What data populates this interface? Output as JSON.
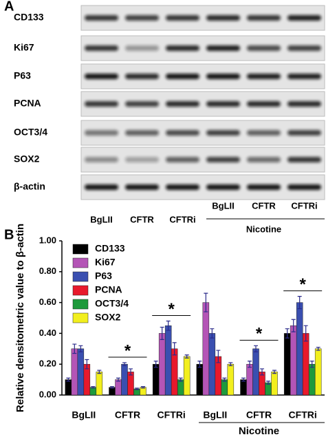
{
  "blot": {
    "panel_label": "A",
    "rows": [
      "CD133",
      "Ki67",
      "P63",
      "PCNA",
      "OCT3/4",
      "SOX2",
      "β-actin"
    ],
    "lanes": [
      "BgLII",
      "CFTR",
      "CFTRi",
      "BgLII",
      "CFTR",
      "CFTRi"
    ],
    "group_label": "Nicotine"
  },
  "chart_data": {
    "type": "bar",
    "panel_label": "B",
    "ylabel": "Relative densitometric value to β-actin",
    "categories": [
      "BgLII",
      "CFTR",
      "CFTRi",
      "BgLII",
      "CFTR",
      "CFTRi"
    ],
    "group_label": "Nicotine",
    "series": [
      {
        "name": "CD133",
        "color": "#000000",
        "values": [
          0.1,
          0.05,
          0.2,
          0.2,
          0.1,
          0.4
        ],
        "errors": [
          0.01,
          0.005,
          0.02,
          0.02,
          0.01,
          0.03
        ]
      },
      {
        "name": "Ki67",
        "color": "#b455b6",
        "values": [
          0.3,
          0.1,
          0.4,
          0.6,
          0.2,
          0.45
        ],
        "errors": [
          0.03,
          0.01,
          0.04,
          0.06,
          0.02,
          0.04
        ]
      },
      {
        "name": "P63",
        "color": "#3a4fb0",
        "values": [
          0.3,
          0.2,
          0.45,
          0.4,
          0.3,
          0.6
        ],
        "errors": [
          0.02,
          0.01,
          0.03,
          0.03,
          0.02,
          0.04
        ]
      },
      {
        "name": "PCNA",
        "color": "#e8192c",
        "values": [
          0.2,
          0.15,
          0.3,
          0.25,
          0.15,
          0.4
        ],
        "errors": [
          0.03,
          0.02,
          0.04,
          0.04,
          0.02,
          0.05
        ]
      },
      {
        "name": "OCT3/4",
        "color": "#1e9a3c",
        "values": [
          0.05,
          0.04,
          0.1,
          0.1,
          0.08,
          0.2
        ],
        "errors": [
          0.005,
          0.005,
          0.01,
          0.01,
          0.01,
          0.02
        ]
      },
      {
        "name": "SOX2",
        "color": "#f2ef1e",
        "values": [
          0.15,
          0.05,
          0.25,
          0.2,
          0.15,
          0.3
        ],
        "errors": [
          0.01,
          0.005,
          0.01,
          0.01,
          0.01,
          0.01
        ]
      }
    ],
    "ylim": [
      0,
      1
    ],
    "yticks": [
      {
        "value": 0,
        "label": "0.00"
      },
      {
        "value": 0.2,
        "label": "0.20"
      },
      {
        "value": 0.4,
        "label": "0.40"
      },
      {
        "value": 0.6,
        "label": "0.60"
      },
      {
        "value": 0.8,
        "label": "0.80"
      },
      {
        "value": 1,
        "label": "1.00"
      }
    ],
    "annotations": [
      "*",
      "*",
      "*",
      "*"
    ]
  }
}
